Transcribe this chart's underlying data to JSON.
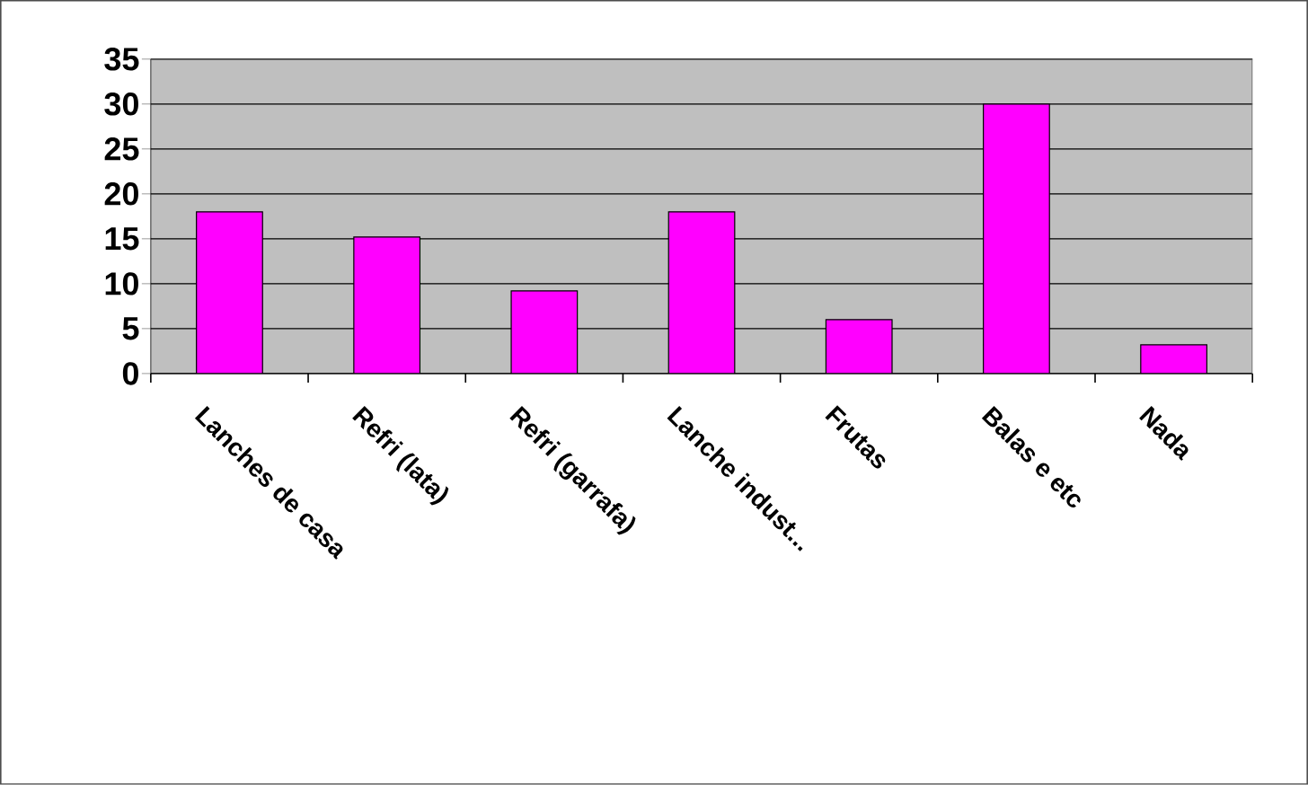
{
  "chart_data": {
    "type": "bar",
    "categories": [
      "Lanches de casa",
      "Refri (lata)",
      "Refri (garrafa)",
      "Lanche indust...",
      "Frutas",
      "Balas e etc",
      "Nada"
    ],
    "values": [
      18.0,
      15.2,
      9.2,
      18.0,
      6.0,
      30.0,
      3.2
    ],
    "color": "#ff00ff",
    "ylim": [
      0,
      35
    ],
    "yticks": [
      0,
      5,
      10,
      15,
      20,
      25,
      30,
      35
    ],
    "grid": "y"
  }
}
